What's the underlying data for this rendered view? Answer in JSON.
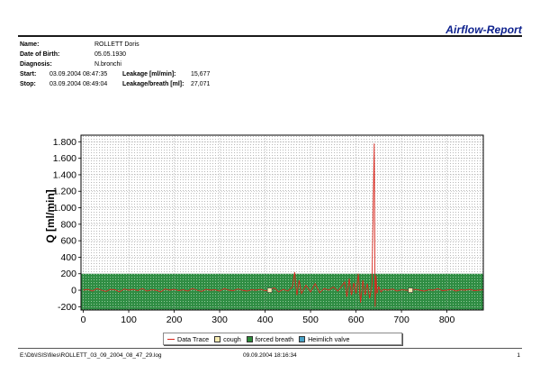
{
  "report": {
    "title": "Airflow-Report"
  },
  "patient": {
    "name_label": "Name:",
    "name_value": "ROLLETT Doris",
    "dob_label": "Date of Birth:",
    "dob_value": "05.05.1930",
    "diagnosis_label": "Diagnosis:",
    "diagnosis_value": "N.bronchi",
    "start_label": "Start:",
    "start_value": "03.09.2004 08:47:35",
    "stop_label": "Stop:",
    "stop_value": "03.09.2004 08:49:04",
    "leakage_label": "Leakage [ml/min]:",
    "leakage_value": "15,677",
    "leakage_breath_label": "Leakage/breath [ml]:",
    "leakage_breath_value": "27,071"
  },
  "chart_data": {
    "type": "line",
    "title": "",
    "xlabel": "",
    "ylabel": "Q [ml/min]",
    "xlim": [
      -5,
      880
    ],
    "ylim": [
      -240,
      1880
    ],
    "x_ticks": [
      0,
      100,
      200,
      300,
      400,
      500,
      600,
      700,
      800
    ],
    "x_tick_labels": [
      "0",
      "100",
      "200",
      "300",
      "400",
      "500",
      "600",
      "700",
      "800"
    ],
    "y_ticks": [
      -200,
      0,
      200,
      400,
      600,
      800,
      1000,
      1200,
      1400,
      1600,
      1800
    ],
    "y_tick_labels": [
      "-200",
      "0",
      "200",
      "400",
      "600",
      "800",
      "1.000",
      "1.200",
      "1.400",
      "1.600",
      "1.800"
    ],
    "grid": true,
    "band": {
      "from": -240,
      "to": 200,
      "color": "#1f8a3a"
    },
    "colors": {
      "trace": "#d9261c",
      "plot_bg": "#ffffff",
      "frame": "#000000"
    },
    "series": [
      {
        "name": "Data Trace",
        "x": [
          0,
          10,
          20,
          30,
          40,
          50,
          60,
          70,
          80,
          90,
          100,
          110,
          120,
          130,
          140,
          150,
          160,
          170,
          180,
          190,
          200,
          210,
          220,
          230,
          240,
          250,
          260,
          270,
          280,
          290,
          300,
          310,
          320,
          330,
          340,
          350,
          360,
          370,
          380,
          390,
          400,
          410,
          420,
          430,
          440,
          450,
          460,
          465,
          470,
          475,
          480,
          490,
          500,
          510,
          520,
          530,
          540,
          550,
          560,
          570,
          575,
          580,
          585,
          590,
          595,
          600,
          605,
          610,
          615,
          620,
          625,
          630,
          635,
          640,
          642,
          644,
          646,
          650,
          655,
          660,
          670,
          680,
          690,
          700,
          710,
          720,
          730,
          740,
          750,
          760,
          770,
          780,
          790,
          800,
          810,
          820,
          830,
          840,
          850,
          860,
          870,
          880
        ],
        "y": [
          0,
          10,
          -10,
          20,
          0,
          -15,
          10,
          5,
          -20,
          15,
          0,
          10,
          -5,
          20,
          -10,
          5,
          0,
          -20,
          15,
          0,
          10,
          -5,
          5,
          -10,
          20,
          0,
          -15,
          10,
          0,
          5,
          -10,
          20,
          0,
          -5,
          15,
          0,
          -10,
          5,
          0,
          10,
          -5,
          0,
          30,
          -20,
          10,
          -10,
          40,
          220,
          -60,
          120,
          -40,
          60,
          -20,
          80,
          -30,
          20,
          0,
          40,
          -10,
          60,
          100,
          -80,
          140,
          -60,
          90,
          -40,
          200,
          -150,
          120,
          -60,
          80,
          -100,
          60,
          1780,
          -200,
          180,
          -40,
          40,
          -20,
          10,
          0,
          15,
          -10,
          5,
          0,
          -5,
          10,
          0,
          -10,
          5,
          0,
          20,
          -5,
          0,
          10,
          -10,
          5,
          0,
          10,
          -5,
          0,
          5
        ]
      },
      {
        "name": "cough",
        "x": [
          410,
          720
        ],
        "y": [
          0,
          0
        ]
      },
      {
        "name": "forced breath",
        "x": [],
        "y": []
      },
      {
        "name": "Heimlich valve",
        "x": [],
        "y": []
      }
    ]
  },
  "legend": {
    "items": [
      {
        "label": "Data Trace",
        "color": "#d9261c",
        "kind": "line"
      },
      {
        "label": "cough",
        "color": "#f4e9b0",
        "kind": "box"
      },
      {
        "label": "forced breath",
        "color": "#2e8b3a",
        "kind": "box"
      },
      {
        "label": "Heimlich valve",
        "color": "#4aa3c8",
        "kind": "box"
      }
    ]
  },
  "footer": {
    "path": "E:\\Db\\ISIS\\files\\ROLLETT_03_09_2004_08_47_29.log",
    "printed": "09.09.2004 18:16:34",
    "page": "1"
  }
}
